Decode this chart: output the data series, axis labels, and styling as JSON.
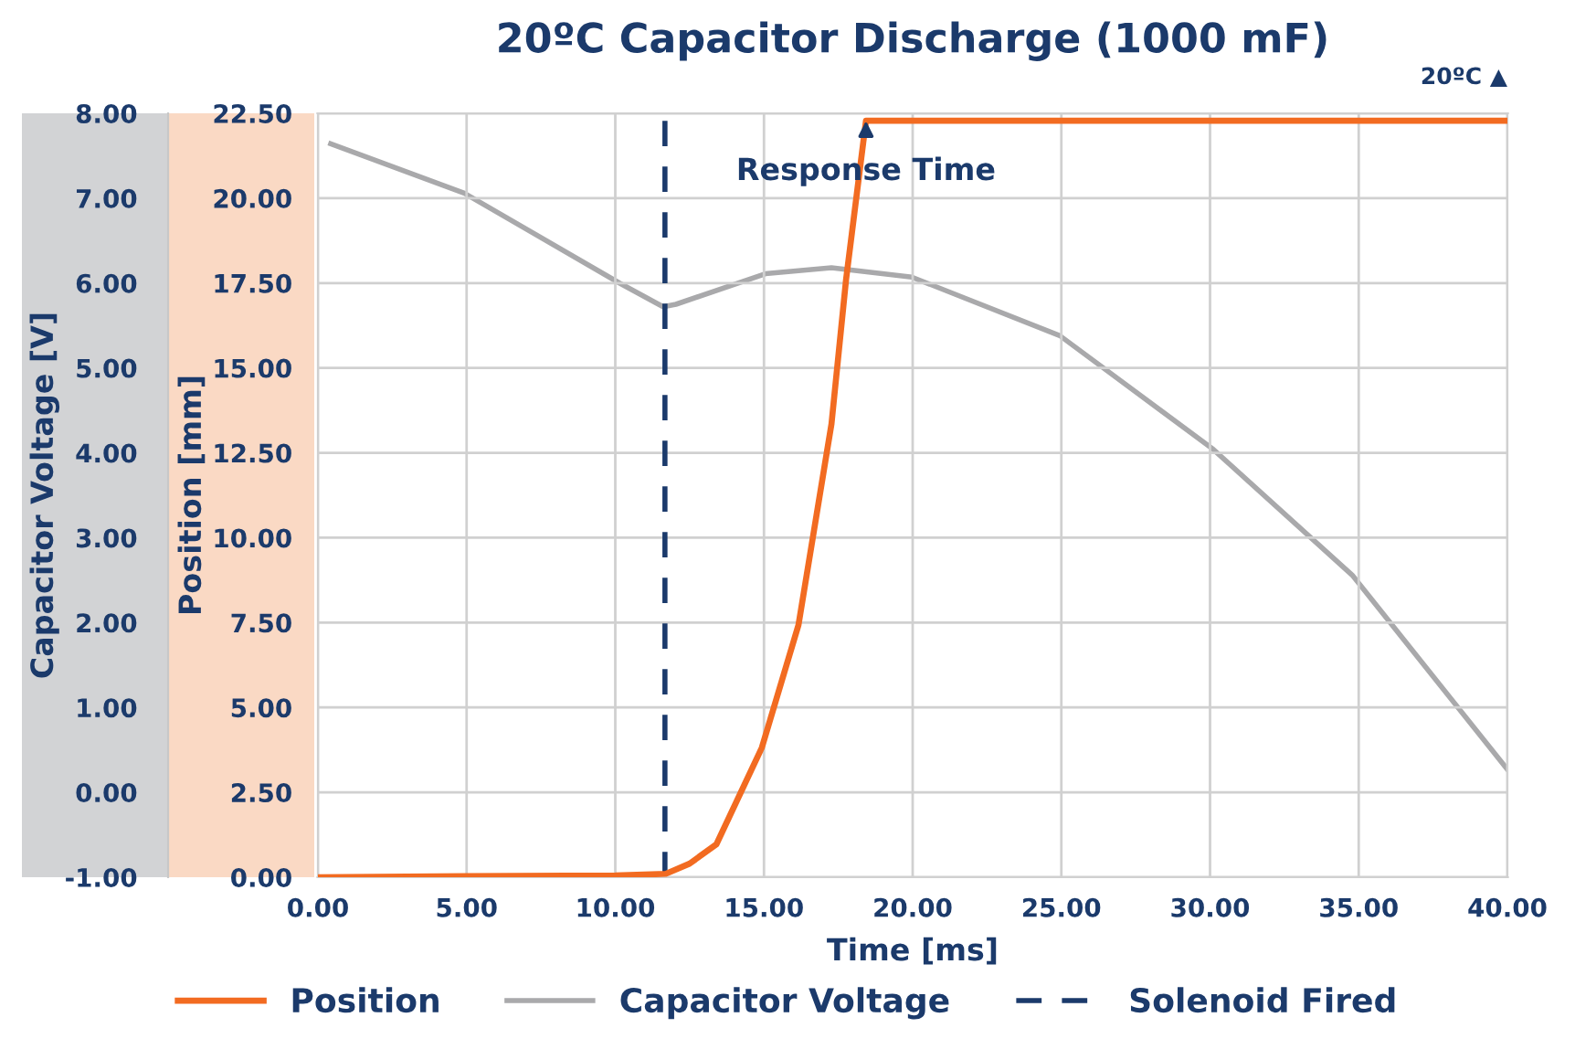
{
  "chart_data": {
    "type": "line",
    "title": "20ºC Capacitor Discharge (1000 mF)",
    "xlabel": "Time [ms]",
    "ylabel": "Position [mm]",
    "y2label": "Capacitor Voltage [V]",
    "series": [
      {
        "name": "Position",
        "color": "#f26b21",
        "x": [
          0.0,
          5.0,
          10.0,
          11.7,
          12.5,
          13.4,
          14.93,
          16.16,
          17.27,
          17.76,
          18.43,
          25.0,
          40.0
        ],
        "values": [
          0.0,
          0.03,
          0.05,
          0.1,
          0.4,
          0.97,
          3.82,
          7.43,
          13.35,
          17.6,
          22.28,
          22.28,
          22.28
        ]
      },
      {
        "name": "Capacitor Voltage",
        "color": "#a9a9ab",
        "axis": "y2",
        "x": [
          0.43,
          4.92,
          10.14,
          11.61,
          12.04,
          15.05,
          17.27,
          19.97,
          24.95,
          30.11,
          34.78,
          40.0
        ],
        "values": [
          7.64,
          7.06,
          6.0,
          5.72,
          5.75,
          6.11,
          6.18,
          6.07,
          5.38,
          4.04,
          2.56,
          0.27
        ]
      }
    ],
    "ref_lines": [
      {
        "axis": "x",
        "value": 11.67,
        "label": "Solenoid Fired",
        "color": "#1b3a6b",
        "line_style": "dashed"
      }
    ],
    "annotations": [
      {
        "text": "Response Time",
        "x": 18.43,
        "y": 22.28
      },
      "20ºC ▲"
    ],
    "xlim": [
      0,
      40
    ],
    "xticks": [
      {
        "value": 0,
        "label": "0.00"
      },
      {
        "value": 5,
        "label": "5.00"
      },
      {
        "value": 10,
        "label": "10.00"
      },
      {
        "value": 15,
        "label": "15.00"
      },
      {
        "value": 20,
        "label": "20.00"
      },
      {
        "value": 25,
        "label": "25.00"
      },
      {
        "value": 30,
        "label": "30.00"
      },
      {
        "value": 35,
        "label": "35.00"
      },
      {
        "value": 40,
        "label": "40.00"
      }
    ],
    "ylim": [
      0,
      22.5
    ],
    "yticks": [
      {
        "value": 0,
        "label": "0.00"
      },
      {
        "value": 2.5,
        "label": "2.50"
      },
      {
        "value": 5,
        "label": "5.00"
      },
      {
        "value": 7.5,
        "label": "7.50"
      },
      {
        "value": 10,
        "label": "10.00"
      },
      {
        "value": 12.5,
        "label": "12.50"
      },
      {
        "value": 15,
        "label": "15.00"
      },
      {
        "value": 17.5,
        "label": "17.50"
      },
      {
        "value": 20,
        "label": "20.00"
      },
      {
        "value": 22.5,
        "label": "22.50"
      }
    ],
    "y2lim": [
      -1,
      8
    ],
    "y2ticks": [
      {
        "value": -1,
        "label": "-1.00"
      },
      {
        "value": 0,
        "label": "0.00"
      },
      {
        "value": 1,
        "label": "1.00"
      },
      {
        "value": 2,
        "label": "2.00"
      },
      {
        "value": 3,
        "label": "3.00"
      },
      {
        "value": 4,
        "label": "4.00"
      },
      {
        "value": 5,
        "label": "5.00"
      },
      {
        "value": 6,
        "label": "6.00"
      },
      {
        "value": 7,
        "label": "7.00"
      },
      {
        "value": 8,
        "label": "8.00"
      }
    ],
    "grid": true,
    "legend": "bottom",
    "marker": "none",
    "line_style": "solid"
  }
}
